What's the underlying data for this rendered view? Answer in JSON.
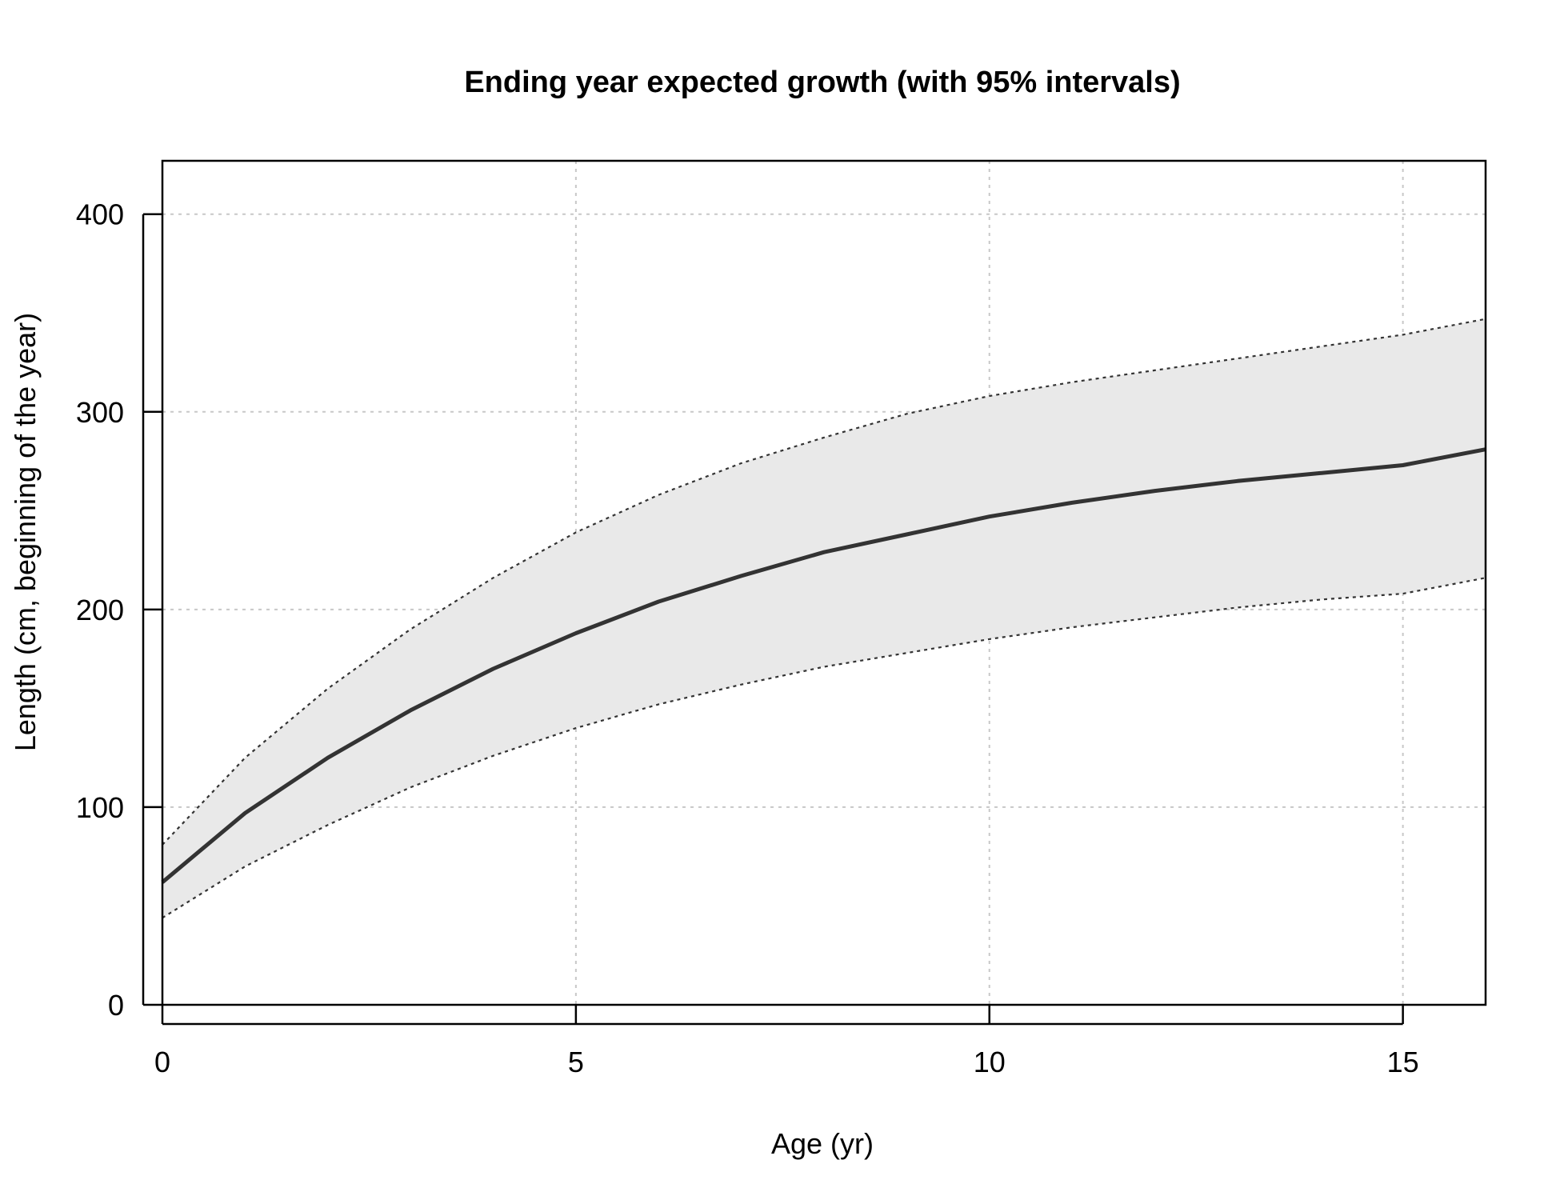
{
  "chart_data": {
    "type": "line",
    "title": "Ending year expected growth (with 95% intervals)",
    "xlabel": "Age (yr)",
    "ylabel": "Length (cm, beginning of the year)",
    "xlim": [
      0,
      16
    ],
    "ylim": [
      0,
      427
    ],
    "x_ticks": [
      0,
      5,
      10,
      15
    ],
    "y_ticks": [
      0,
      100,
      200,
      300,
      400
    ],
    "x_tick_labels": [
      "0",
      "5",
      "10",
      "15"
    ],
    "y_tick_labels": [
      "0",
      "100",
      "200",
      "300",
      "400"
    ],
    "grid": true,
    "x": [
      0,
      1,
      2,
      3,
      4,
      5,
      6,
      7,
      8,
      9,
      10,
      11,
      12,
      13,
      14,
      15,
      16
    ],
    "series": [
      {
        "role": "mean",
        "values": [
          62,
          97,
          125,
          149,
          170,
          188,
          204,
          217,
          229,
          238,
          247,
          254,
          260,
          265,
          269,
          273,
          281
        ]
      },
      {
        "role": "upper_95",
        "values": [
          81,
          125,
          160,
          190,
          216,
          239,
          258,
          274,
          287,
          299,
          308,
          315,
          321,
          327,
          333,
          339,
          347
        ]
      },
      {
        "role": "lower_95",
        "values": [
          44,
          70,
          91,
          110,
          126,
          140,
          152,
          162,
          171,
          178,
          185,
          191,
          196,
          201,
          205,
          208,
          216
        ]
      }
    ],
    "colors": {
      "band": "#e9e9e9",
      "line": "#333333",
      "grid": "#c8c8c8"
    }
  }
}
